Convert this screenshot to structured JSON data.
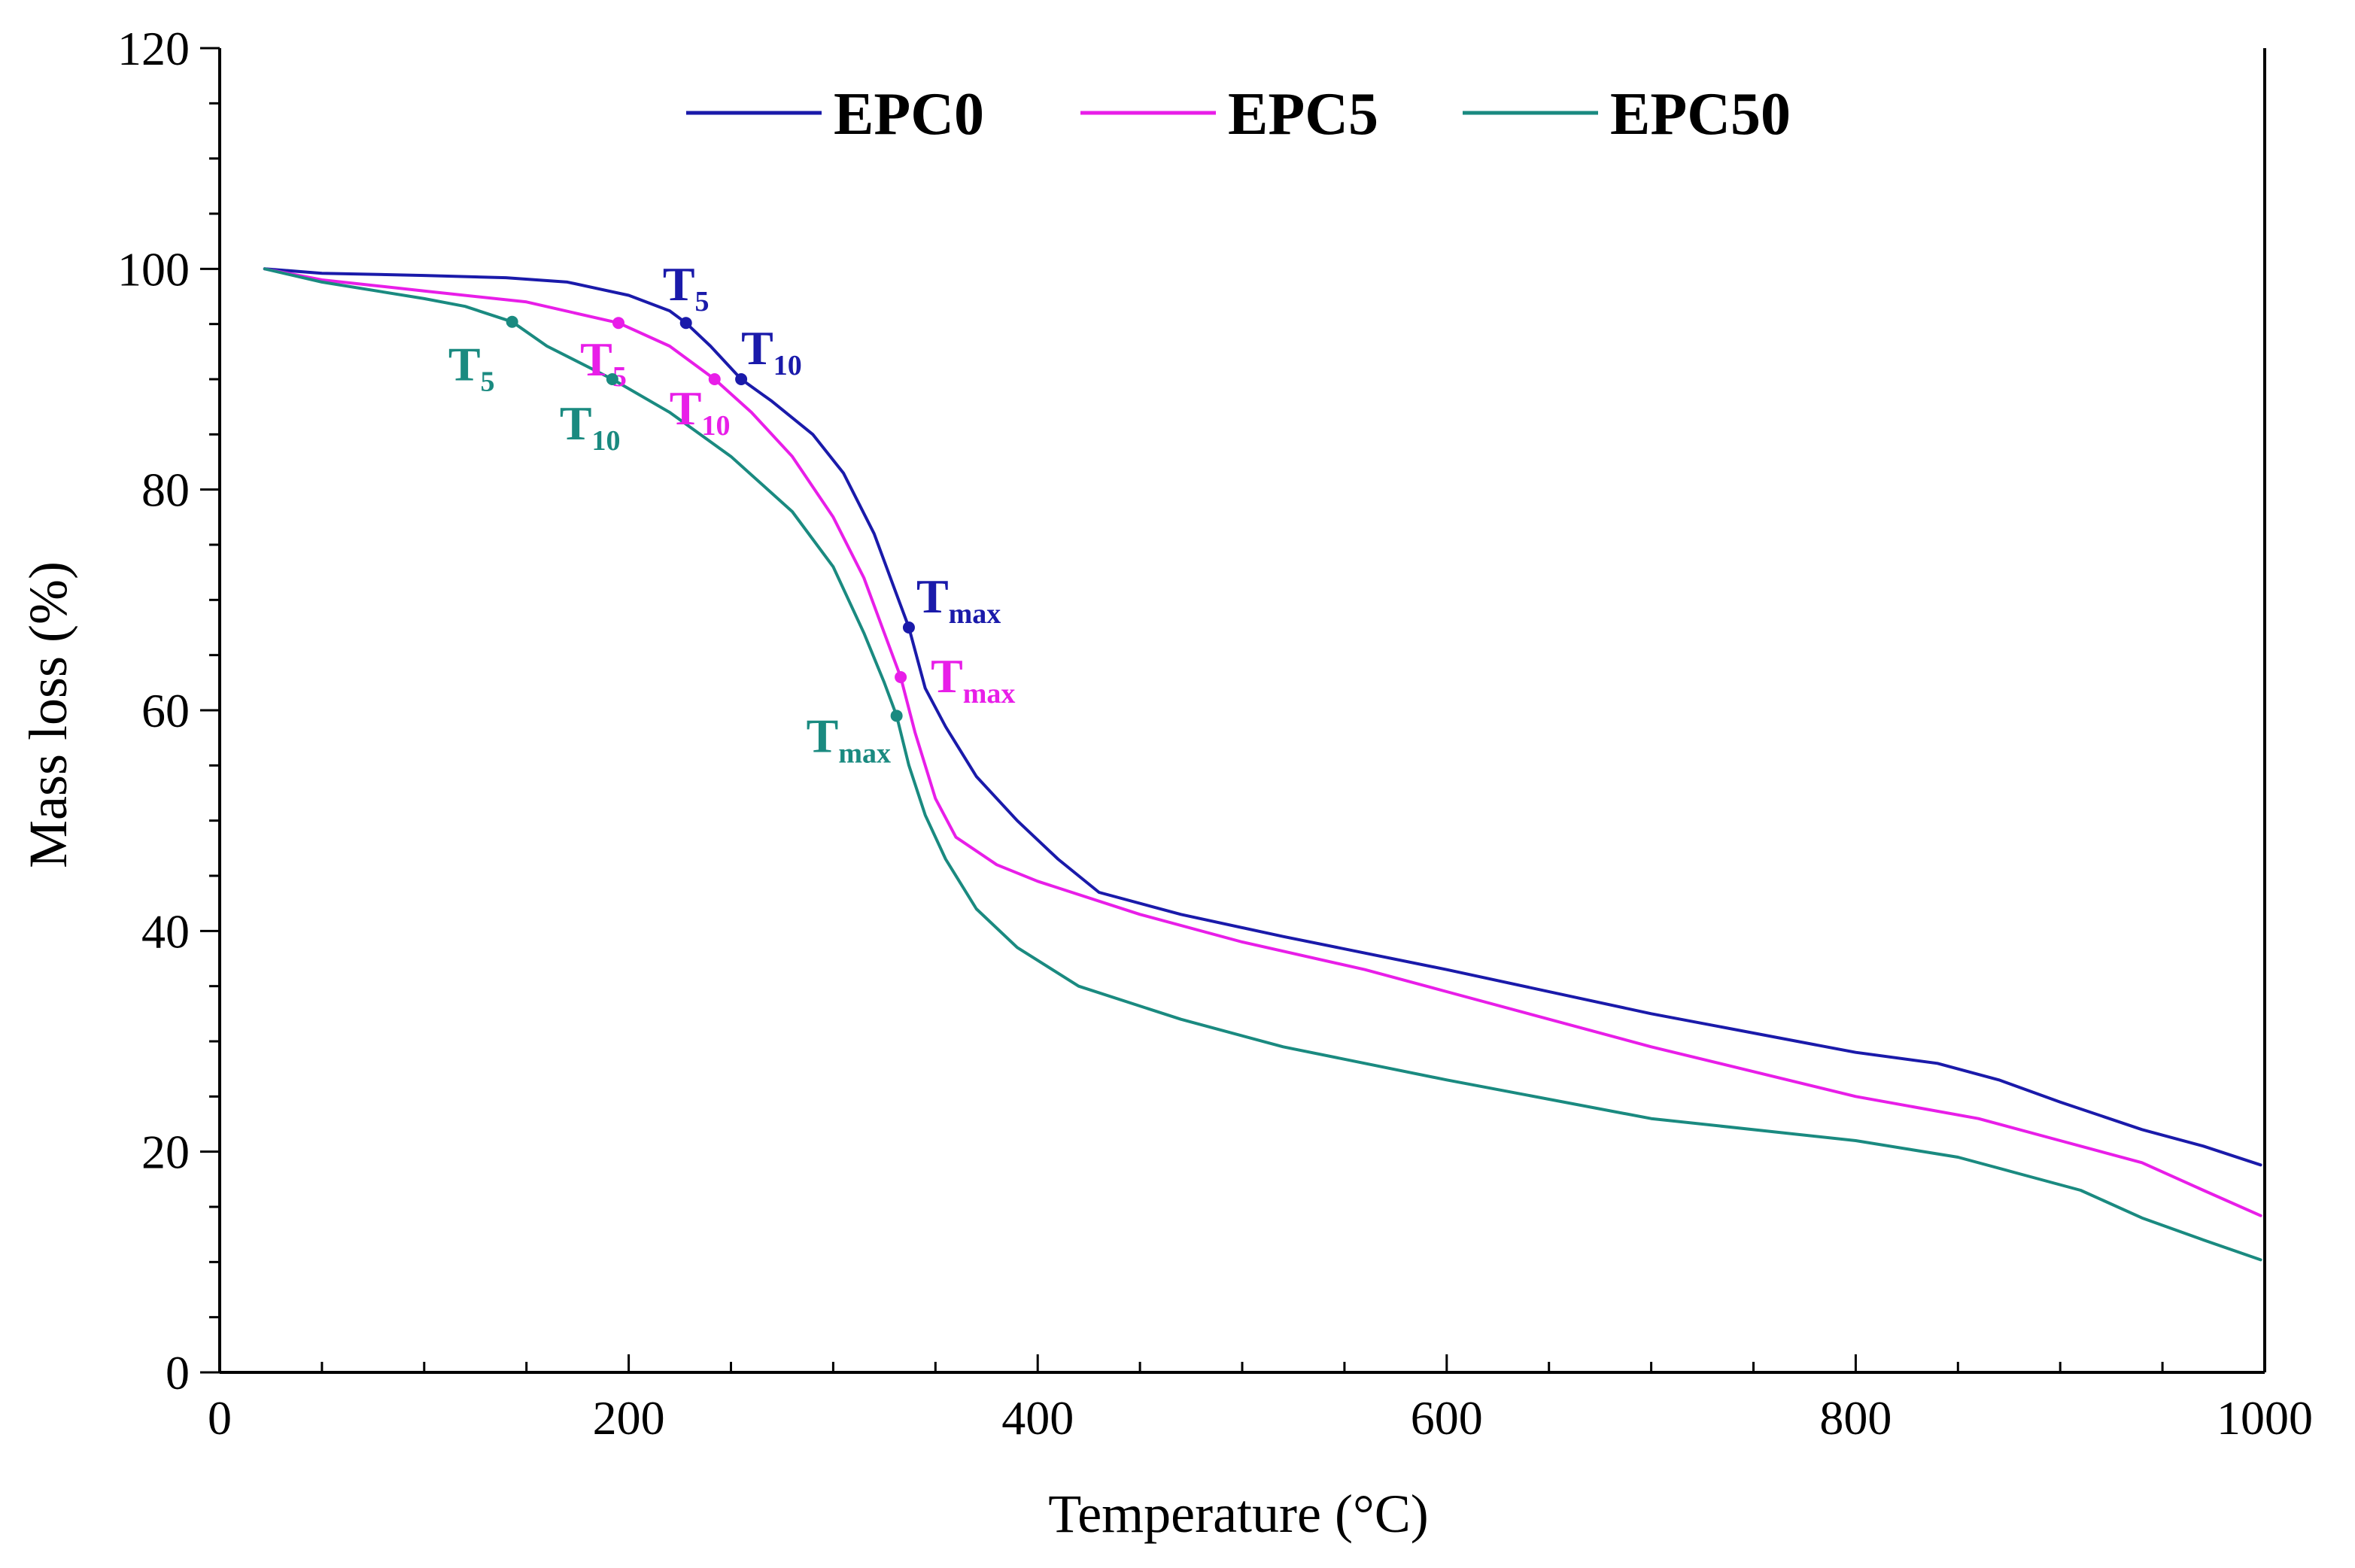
{
  "chart_data": {
    "type": "line",
    "title": "",
    "xlabel": "Temperature (°C)",
    "ylabel": "Mass loss (%)",
    "xlim": [
      0,
      1000
    ],
    "ylim": [
      0,
      120
    ],
    "xticks": [
      0,
      200,
      400,
      600,
      800,
      1000
    ],
    "yticks": [
      0,
      20,
      40,
      60,
      80,
      100,
      120
    ],
    "grid": false,
    "legend_position": "top-center",
    "series": [
      {
        "name": "EPC0",
        "color": "#1a1aaa",
        "x": [
          22,
          50,
          100,
          140,
          170,
          200,
          220,
          228,
          240,
          255,
          270,
          290,
          305,
          320,
          330,
          337,
          345,
          355,
          370,
          390,
          410,
          430,
          470,
          520,
          600,
          700,
          800,
          840,
          870,
          900,
          940,
          970,
          998
        ],
        "y": [
          100,
          99.6,
          99.4,
          99.2,
          98.8,
          97.6,
          96.2,
          95.1,
          93.0,
          90.0,
          88.0,
          85.0,
          81.5,
          76.0,
          71.0,
          67.5,
          62.0,
          58.5,
          54.0,
          50.0,
          46.5,
          43.5,
          41.5,
          39.5,
          36.5,
          32.5,
          29.0,
          28.0,
          26.5,
          24.5,
          22.0,
          20.5,
          18.8
        ]
      },
      {
        "name": "EPC5",
        "color": "#e81ee8",
        "x": [
          22,
          50,
          100,
          150,
          195,
          220,
          242,
          260,
          280,
          300,
          315,
          325,
          333,
          340,
          350,
          360,
          380,
          400,
          450,
          500,
          560,
          600,
          700,
          800,
          860,
          900,
          940,
          970,
          998
        ],
        "y": [
          100,
          99.0,
          98.0,
          97.0,
          95.1,
          93.0,
          90.0,
          87.0,
          83.0,
          77.5,
          72.0,
          67.0,
          63.0,
          58.0,
          52.0,
          48.5,
          46.0,
          44.5,
          41.5,
          39.0,
          36.5,
          34.5,
          29.5,
          25.0,
          23.0,
          21.0,
          19.0,
          16.5,
          14.2
        ]
      },
      {
        "name": "EPC50",
        "color": "#1a8a80",
        "x": [
          22,
          50,
          100,
          120,
          143,
          160,
          192,
          220,
          250,
          280,
          300,
          315,
          325,
          331,
          337,
          345,
          355,
          370,
          390,
          420,
          470,
          520,
          600,
          700,
          800,
          850,
          880,
          910,
          940,
          970,
          998
        ],
        "y": [
          100,
          98.8,
          97.3,
          96.6,
          95.2,
          93.0,
          90.0,
          87.0,
          83.0,
          78.0,
          73.0,
          67.0,
          62.5,
          59.5,
          55.0,
          50.5,
          46.5,
          42.0,
          38.5,
          35.0,
          32.0,
          29.5,
          26.5,
          23.0,
          21.0,
          19.5,
          18.0,
          16.5,
          14.0,
          12.0,
          10.2
        ]
      }
    ],
    "annotations": [
      {
        "series": "EPC0",
        "label": "T",
        "sub": "5",
        "x": 228,
        "y": 95.1
      },
      {
        "series": "EPC0",
        "label": "T",
        "sub": "10",
        "x": 255,
        "y": 90.0
      },
      {
        "series": "EPC0",
        "label": "T",
        "sub": "max",
        "x": 337,
        "y": 67.5
      },
      {
        "series": "EPC5",
        "label": "T",
        "sub": "5",
        "x": 195,
        "y": 95.1
      },
      {
        "series": "EPC5",
        "label": "T",
        "sub": "10",
        "x": 242,
        "y": 90.0
      },
      {
        "series": "EPC5",
        "label": "T",
        "sub": "max",
        "x": 333,
        "y": 63.0
      },
      {
        "series": "EPC50",
        "label": "T",
        "sub": "5",
        "x": 143,
        "y": 95.2
      },
      {
        "series": "EPC50",
        "label": "T",
        "sub": "10",
        "x": 192,
        "y": 90.0
      },
      {
        "series": "EPC50",
        "label": "T",
        "sub": "max",
        "x": 331,
        "y": 59.5
      }
    ]
  }
}
